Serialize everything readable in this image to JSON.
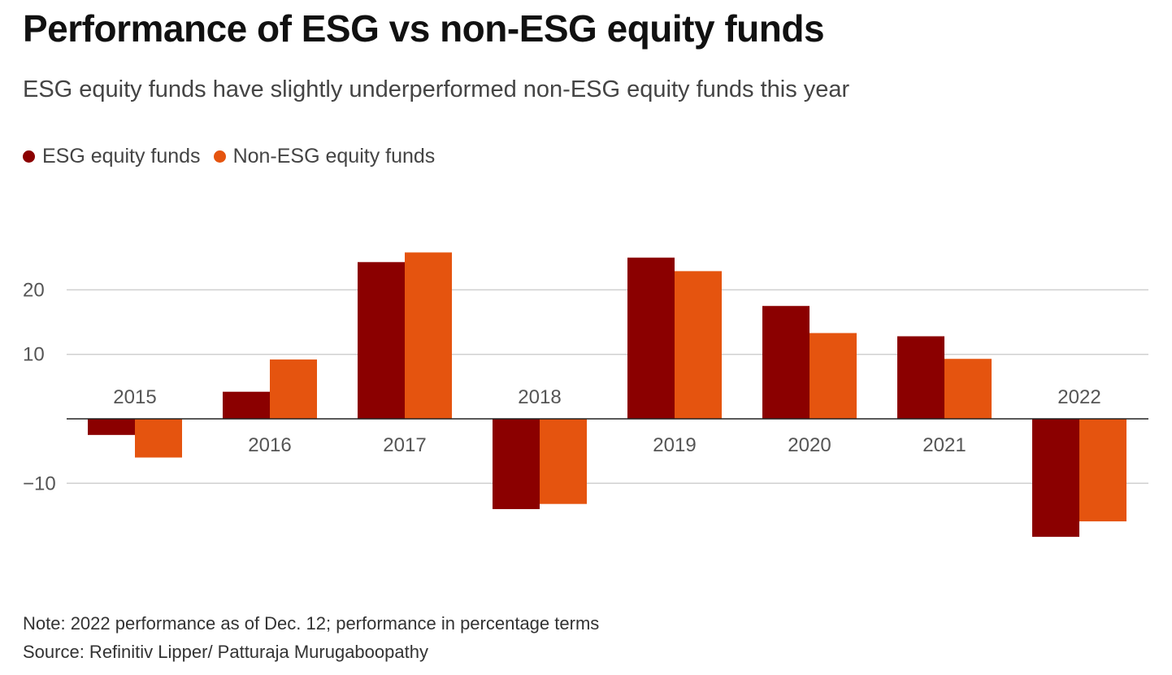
{
  "chart_data": {
    "type": "bar",
    "title": "Performance of ESG vs non-ESG equity funds",
    "subtitle": "ESG equity funds have slightly underperformed non-ESG equity funds this year",
    "categories": [
      "2015",
      "2016",
      "2017",
      "2018",
      "2019",
      "2020",
      "2021",
      "2022"
    ],
    "series": [
      {
        "name": "ESG equity funds",
        "color": "#8b0000",
        "values": [
          -2.5,
          4.2,
          24.3,
          -14.0,
          25.0,
          17.5,
          12.8,
          -18.3
        ]
      },
      {
        "name": "Non-ESG equity funds",
        "color": "#e5540f",
        "values": [
          -6.0,
          9.2,
          25.8,
          -13.2,
          22.9,
          13.3,
          9.3,
          -15.9
        ]
      }
    ],
    "yticks": [
      -10,
      10,
      20
    ],
    "ytick_labels": [
      "−10",
      "10",
      "20"
    ],
    "ylim": [
      -22,
      30
    ],
    "xlabel": "",
    "ylabel": "",
    "grid": true,
    "legend_position": "top-left",
    "note": "Note: 2022 performance as of Dec. 12; performance in percentage terms",
    "source": "Source: Refinitiv Lipper/ Patturaja Murugaboopathy"
  }
}
